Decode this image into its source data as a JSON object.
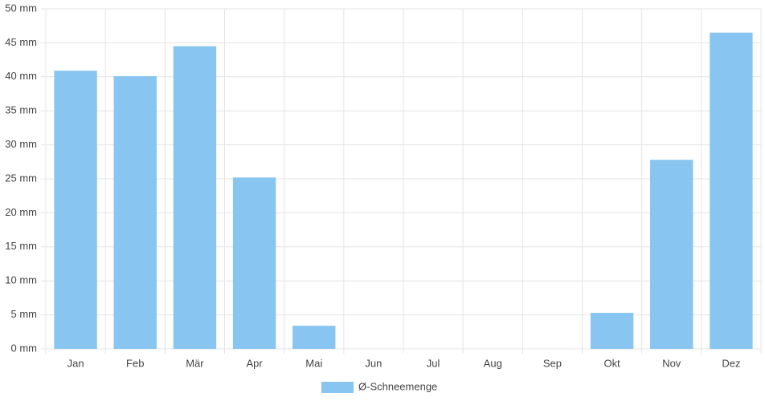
{
  "chart_data": {
    "type": "bar",
    "categories": [
      "Jan",
      "Feb",
      "Mär",
      "Apr",
      "Mai",
      "Jun",
      "Jul",
      "Aug",
      "Sep",
      "Okt",
      "Nov",
      "Dez"
    ],
    "series": [
      {
        "name": "Ø-Schneemenge",
        "color": "#88c6f1",
        "values": [
          40.9,
          40.1,
          44.5,
          25.2,
          3.4,
          0,
          0,
          0,
          0,
          5.3,
          27.8,
          46.5
        ]
      }
    ],
    "ylim": [
      0,
      50
    ],
    "yticks": [
      {
        "value": 0,
        "label": "0 mm"
      },
      {
        "value": 5,
        "label": "5 mm"
      },
      {
        "value": 10,
        "label": "10 mm"
      },
      {
        "value": 15,
        "label": "15 mm"
      },
      {
        "value": 20,
        "label": "20 mm"
      },
      {
        "value": 25,
        "label": "25 mm"
      },
      {
        "value": 30,
        "label": "30 mm"
      },
      {
        "value": 35,
        "label": "35 mm"
      },
      {
        "value": 40,
        "label": "40 mm"
      },
      {
        "value": 45,
        "label": "45 mm"
      },
      {
        "value": 50,
        "label": "50 mm"
      }
    ],
    "grid": true,
    "legend": "bottom"
  }
}
